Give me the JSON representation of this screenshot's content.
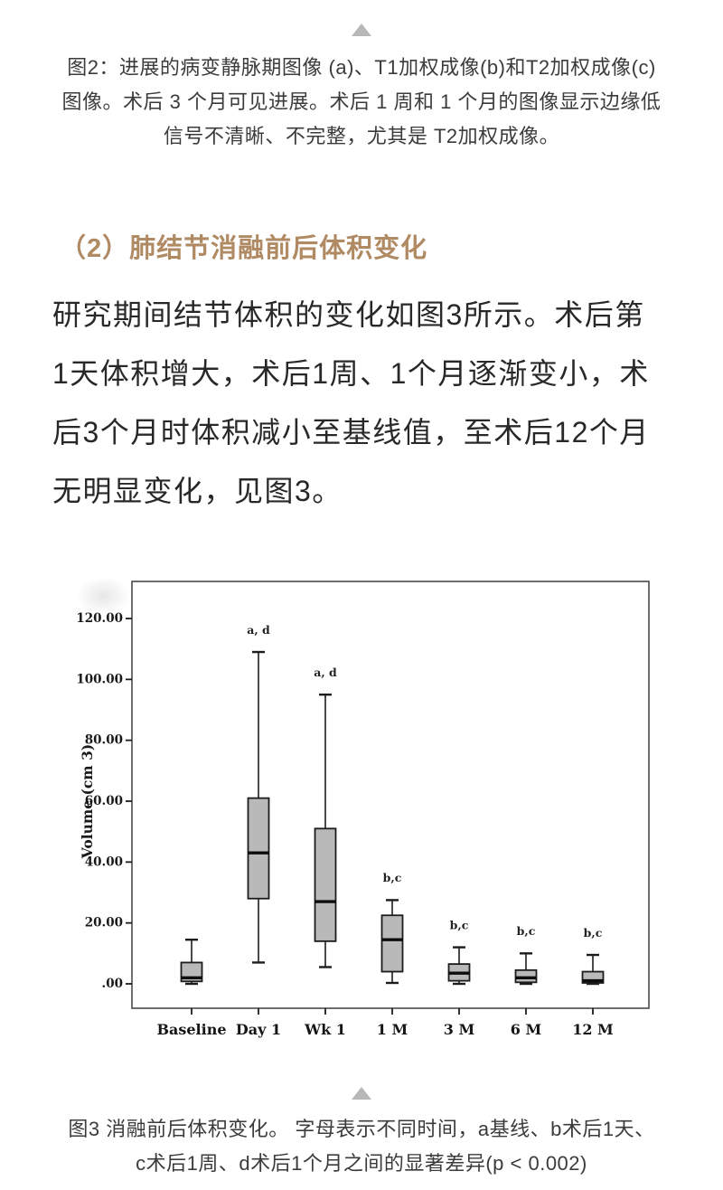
{
  "page": {
    "top_caption": "图2：进展的病变静脉期图像 (a)、T1加权成像(b)和T2加权成像(c)\n图像。术后 3 个月可见进展。术后 1 周和 1 个月的图像显示边缘低\n信号不清晰、不完整，尤其是 T2加权成像。",
    "section_heading": "（2）肺结节消融前后体积变化",
    "body_paragraph": "研究期间结节体积的变化如图3所示。术后第\n1天体积增大，术后1周、1个月逐渐变小，术\n后3个月时体积减小至基线值，至术后12个月\n无明显变化，见图3。",
    "bottom_caption": "图3 消融前后体积变化。 字母表示不同时间，a基线、b术后1天、\nc术后1周、d术后1个月之间的显著差异(p < 0.002)",
    "colors": {
      "heading": "#b08a63",
      "body_text": "#282828",
      "caption_text": "#3b3b3b",
      "separator_triangle": "#b7b7b7",
      "box_fill": "#b9b9b9",
      "chart_line": "#1c1c1c"
    }
  },
  "chart_data": {
    "type": "boxplot",
    "title": "",
    "xlabel": "",
    "ylabel": "Volume (cm 3)",
    "ylim": [
      -8,
      131
    ],
    "yticks": [
      0,
      20,
      40,
      60,
      80,
      100,
      120
    ],
    "ytick_labels": [
      ".00",
      "20.00",
      "40.00",
      "60.00",
      "80.00",
      "100.00",
      "120.00"
    ],
    "grid": false,
    "legend": false,
    "categories": [
      "Baseline",
      "Day 1",
      "Wk 1",
      "1 M",
      "3 M",
      "6 M",
      "12 M"
    ],
    "series": [
      {
        "category": "Baseline",
        "min": 0,
        "q1": 0.8,
        "median": 2,
        "q3": 7,
        "max": 14.5,
        "note": ""
      },
      {
        "category": "Day 1",
        "min": 7,
        "q1": 28,
        "median": 43,
        "q3": 61,
        "max": 109,
        "note": "a, d"
      },
      {
        "category": "Wk 1",
        "min": 5.5,
        "q1": 14,
        "median": 27,
        "q3": 51,
        "max": 95,
        "note": "a, d"
      },
      {
        "category": "1 M",
        "min": 0.3,
        "q1": 4,
        "median": 14.5,
        "q3": 22.5,
        "max": 27.5,
        "note": "b,c"
      },
      {
        "category": "3 M",
        "min": 0,
        "q1": 1,
        "median": 3.5,
        "q3": 6.5,
        "max": 12,
        "note": "b,c"
      },
      {
        "category": "6 M",
        "min": 0,
        "q1": 0.5,
        "median": 2,
        "q3": 4.5,
        "max": 10,
        "note": "b,c"
      },
      {
        "category": "12 M",
        "min": 0,
        "q1": 0.3,
        "median": 1,
        "q3": 4,
        "max": 9.5,
        "note": "b,c"
      }
    ],
    "note_offset_units": 6
  }
}
